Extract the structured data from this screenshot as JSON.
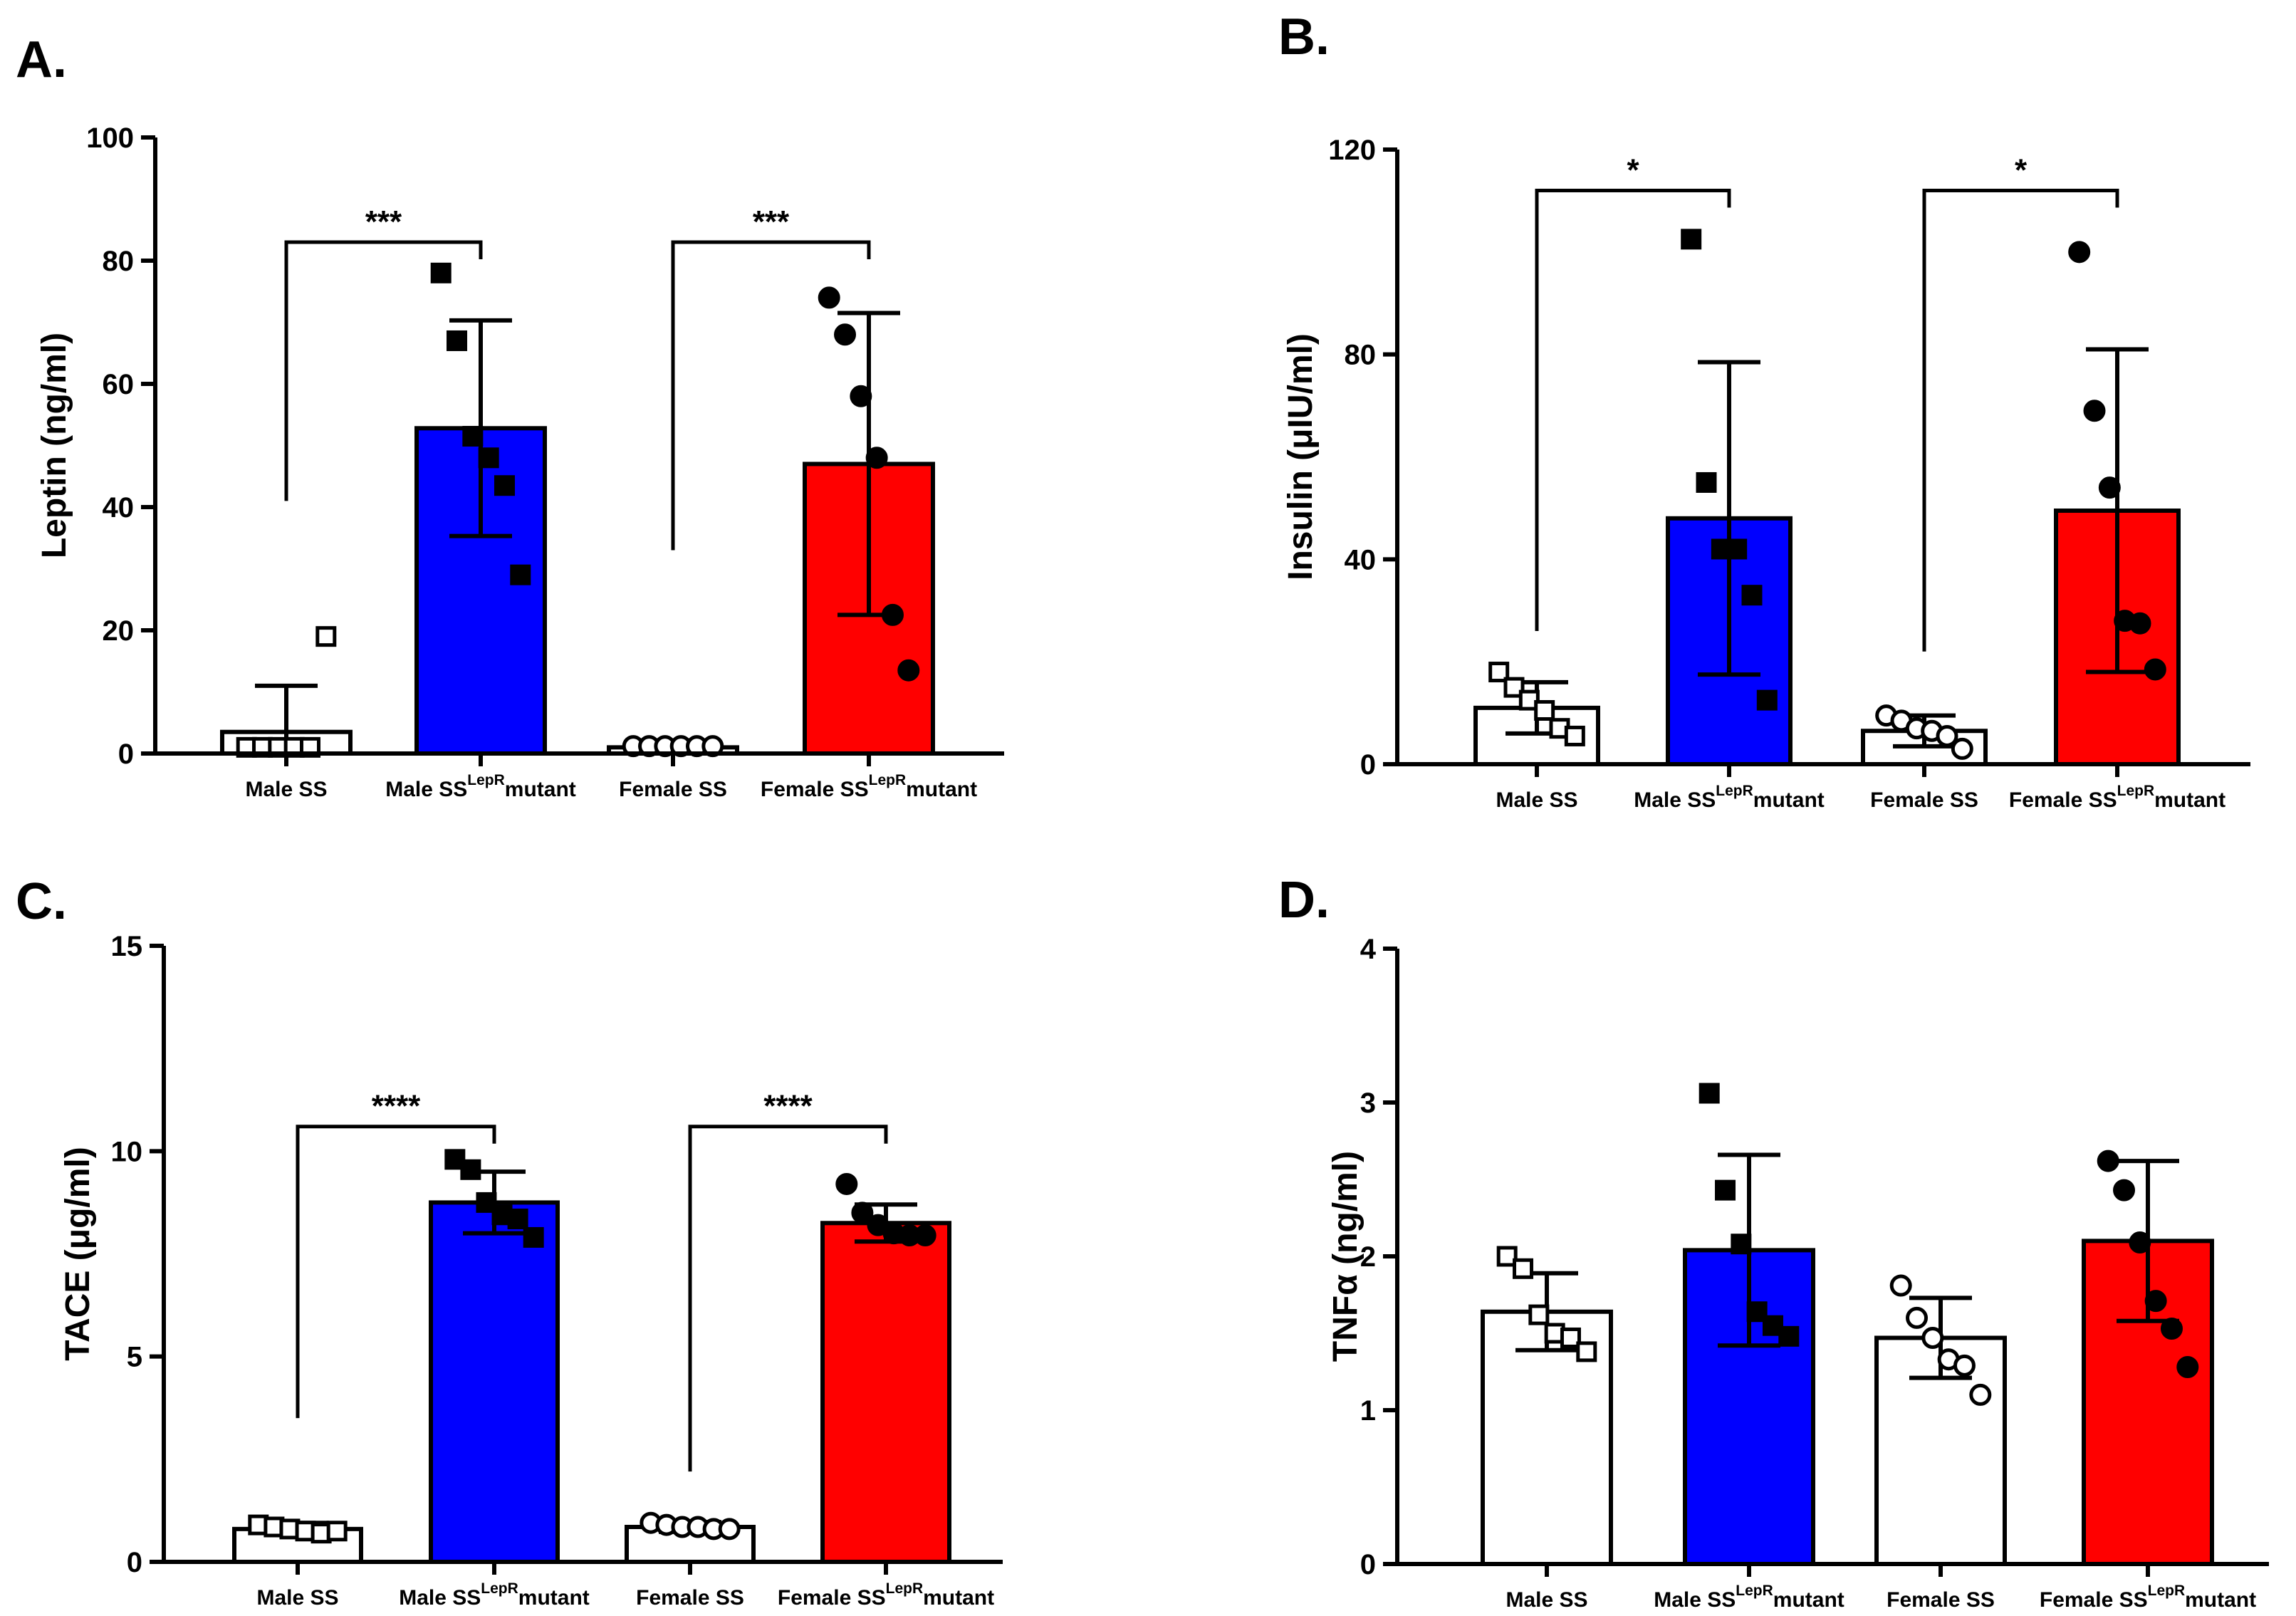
{
  "chart_data": [
    {
      "type": "bar",
      "panel_label": "A.",
      "ylabel": "Leptin (ng/ml)",
      "ylim": [
        0,
        100
      ],
      "yticks": [
        0,
        20,
        40,
        60,
        80,
        100
      ],
      "categories": [
        {
          "base": "Male SS",
          "sup": "",
          "tail": ""
        },
        {
          "base": "Male SS",
          "sup": "LepR",
          "tail": "mutant"
        },
        {
          "base": "Female SS",
          "sup": "",
          "tail": ""
        },
        {
          "base": "Female SS",
          "sup": "LepR",
          "tail": "mutant"
        }
      ],
      "means": [
        3.5,
        52.8,
        1.0,
        47.0
      ],
      "sd": [
        7.5,
        17.5,
        0.4,
        24.5
      ],
      "fills": [
        "#ffffff",
        "#0000ff",
        "#ffffff",
        "#ff0000"
      ],
      "markers": [
        "square-open",
        "square",
        "circle-open",
        "circle"
      ],
      "points": [
        [
          1,
          1,
          1,
          1,
          1,
          19
        ],
        [
          78,
          67,
          51.5,
          48,
          43.5,
          29
        ],
        [
          1.2,
          1.2,
          1.2,
          1.2,
          1.2,
          1.2
        ],
        [
          74,
          68,
          58,
          48,
          22.5,
          13.5
        ]
      ],
      "significance": [
        {
          "from": 0,
          "to": 1,
          "label": "***",
          "left_y": 41,
          "right_y": 83
        },
        {
          "from": 2,
          "to": 3,
          "label": "***",
          "left_y": 33,
          "right_y": 83
        }
      ]
    },
    {
      "type": "bar",
      "panel_label": "B.",
      "ylabel": "Insulin (μIU/ml)",
      "ylim": [
        0,
        120
      ],
      "yticks": [
        0,
        40,
        80,
        120
      ],
      "categories": [
        {
          "base": "Male SS",
          "sup": "",
          "tail": ""
        },
        {
          "base": "Male SS",
          "sup": "LepR",
          "tail": "mutant"
        },
        {
          "base": "Female SS",
          "sup": "",
          "tail": ""
        },
        {
          "base": "Female SS",
          "sup": "LepR",
          "tail": "mutant"
        }
      ],
      "means": [
        11,
        48,
        6.5,
        49.5
      ],
      "sd": [
        5,
        30.5,
        3,
        31.5
      ],
      "fills": [
        "#ffffff",
        "#0000ff",
        "#ffffff",
        "#ff0000"
      ],
      "markers": [
        "square-open",
        "square",
        "circle-open",
        "circle"
      ],
      "points": [
        [
          18,
          15,
          12.5,
          10.5,
          7,
          5.5
        ],
        [
          102.5,
          55,
          42,
          42,
          33,
          12.5
        ],
        [
          9.5,
          8.5,
          7,
          6.5,
          5.5,
          3
        ],
        [
          100,
          69,
          54,
          28,
          27.5,
          18.5
        ]
      ],
      "significance": [
        {
          "from": 0,
          "to": 1,
          "label": "*",
          "left_y": 26,
          "right_y": 112
        },
        {
          "from": 2,
          "to": 3,
          "label": "*",
          "left_y": 22,
          "right_y": 112
        }
      ]
    },
    {
      "type": "bar",
      "panel_label": "C.",
      "ylabel": "TACE (μg/ml)",
      "ylim": [
        0,
        15
      ],
      "yticks": [
        0,
        5,
        10,
        15
      ],
      "categories": [
        {
          "base": "Male SS",
          "sup": "",
          "tail": ""
        },
        {
          "base": "Male SS",
          "sup": "LepR",
          "tail": "mutant"
        },
        {
          "base": "Female SS",
          "sup": "",
          "tail": ""
        },
        {
          "base": "Female SS",
          "sup": "LepR",
          "tail": "mutant"
        }
      ],
      "means": [
        0.8,
        8.75,
        0.85,
        8.25
      ],
      "sd": [
        0.15,
        0.75,
        0.12,
        0.45
      ],
      "fills": [
        "#ffffff",
        "#0000ff",
        "#ffffff",
        "#ff0000"
      ],
      "markers": [
        "square-open",
        "square",
        "circle-open",
        "circle"
      ],
      "points": [
        [
          0.9,
          0.85,
          0.8,
          0.75,
          0.7,
          0.75
        ],
        [
          9.8,
          9.55,
          8.75,
          8.45,
          8.35,
          7.9
        ],
        [
          0.95,
          0.9,
          0.85,
          0.85,
          0.8,
          0.8
        ],
        [
          9.2,
          8.5,
          8.2,
          8.0,
          7.95,
          7.95
        ]
      ],
      "significance": [
        {
          "from": 0,
          "to": 1,
          "label": "****",
          "left_y": 3.5,
          "right_y": 10.6
        },
        {
          "from": 2,
          "to": 3,
          "label": "****",
          "left_y": 2.2,
          "right_y": 10.6
        }
      ]
    },
    {
      "type": "bar",
      "panel_label": "D.",
      "ylabel": "TNFα (ng/ml)",
      "ylim": [
        0,
        4
      ],
      "yticks": [
        0,
        1,
        2,
        3,
        4
      ],
      "categories": [
        {
          "base": "Male SS",
          "sup": "",
          "tail": ""
        },
        {
          "base": "Male SS",
          "sup": "LepR",
          "tail": "mutant"
        },
        {
          "base": "Female SS",
          "sup": "",
          "tail": ""
        },
        {
          "base": "Female SS",
          "sup": "LepR",
          "tail": "mutant"
        }
      ],
      "means": [
        1.64,
        2.04,
        1.47,
        2.1
      ],
      "sd": [
        0.25,
        0.62,
        0.26,
        0.52
      ],
      "fills": [
        "#ffffff",
        "#0000ff",
        "#ffffff",
        "#ff0000"
      ],
      "markers": [
        "square-open",
        "square",
        "circle-open",
        "circle"
      ],
      "points": [
        [
          2.0,
          1.92,
          1.62,
          1.5,
          1.47,
          1.38
        ],
        [
          3.06,
          2.43,
          2.08,
          1.64,
          1.55,
          1.48
        ],
        [
          1.81,
          1.6,
          1.47,
          1.33,
          1.29,
          1.1
        ],
        [
          2.62,
          2.43,
          2.09,
          1.71,
          1.53,
          1.28
        ]
      ],
      "significance": []
    }
  ]
}
